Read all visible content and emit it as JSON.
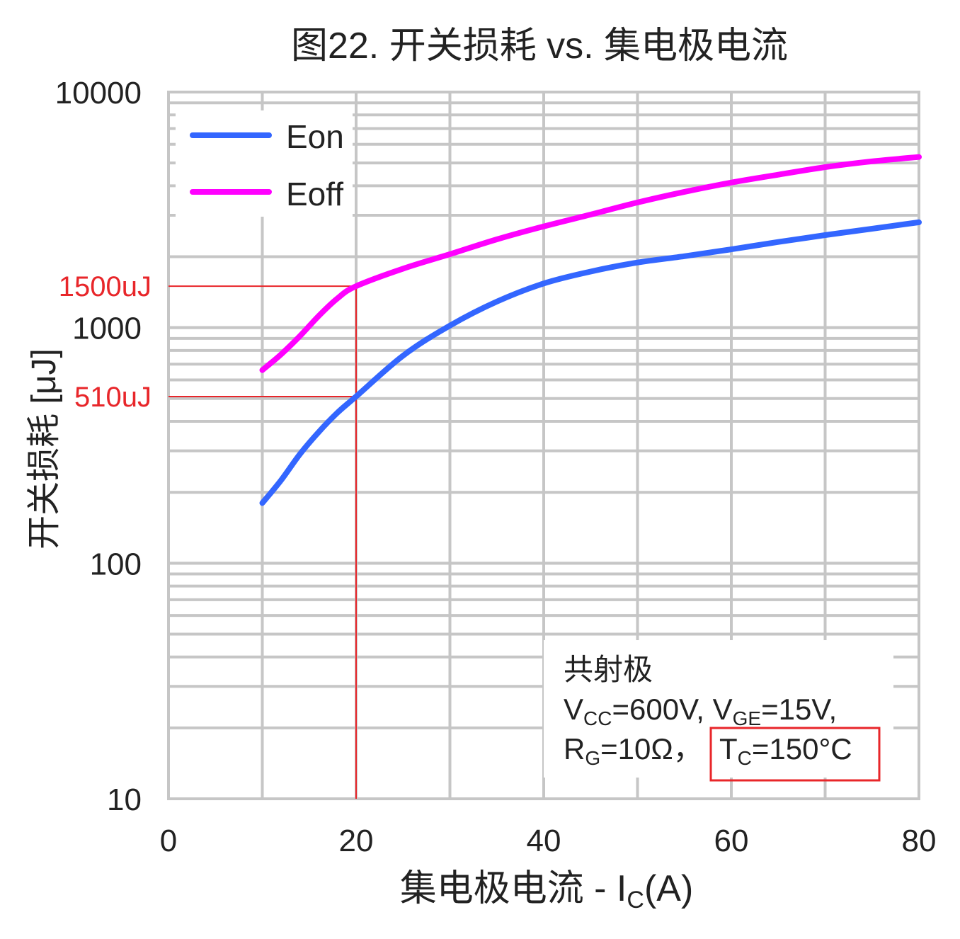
{
  "chart_data": {
    "type": "line",
    "title": "图22. 开关损耗 vs. 集电极电流",
    "xlabel": "集电极电流 - I",
    "xlabel_sub": "C",
    "xlabel_suffix": "(A)",
    "ylabel": "开关损耗 [μJ]",
    "xlim": [
      0,
      80
    ],
    "ylim": [
      10,
      10000
    ],
    "yscale": "log",
    "grid": true,
    "legend_position": "top-left",
    "x_ticks": [
      {
        "value": 0,
        "label": "0"
      },
      {
        "value": 20,
        "label": "20"
      },
      {
        "value": 40,
        "label": "40"
      },
      {
        "value": 60,
        "label": "60"
      },
      {
        "value": 80,
        "label": "80"
      }
    ],
    "y_ticks": [
      {
        "value": 10,
        "label": "10"
      },
      {
        "value": 100,
        "label": "100"
      },
      {
        "value": 1000,
        "label": "1000"
      },
      {
        "value": 10000,
        "label": "10000"
      }
    ],
    "series": [
      {
        "name": "Eon",
        "color": "#3366ff",
        "x": [
          10,
          12,
          14,
          16,
          18,
          20,
          25,
          30,
          35,
          40,
          45,
          50,
          55,
          60,
          65,
          70,
          75,
          80
        ],
        "y": [
          180,
          225,
          290,
          360,
          435,
          510,
          760,
          1020,
          1290,
          1540,
          1730,
          1890,
          2010,
          2150,
          2310,
          2470,
          2630,
          2800
        ]
      },
      {
        "name": "Eoff",
        "color": "#ff00ff",
        "x": [
          10,
          12,
          14,
          16,
          18,
          20,
          25,
          30,
          35,
          40,
          45,
          50,
          55,
          60,
          65,
          70,
          75,
          80
        ],
        "y": [
          660,
          770,
          920,
          1120,
          1330,
          1500,
          1780,
          2050,
          2370,
          2690,
          3020,
          3400,
          3770,
          4130,
          4460,
          4800,
          5080,
          5300
        ]
      }
    ],
    "annotations": {
      "marker_color": "#e8262a",
      "x_line_value": 20,
      "h_lines": [
        {
          "value": 1500,
          "label": "1500uJ"
        },
        {
          "value": 510,
          "label": "510uJ"
        }
      ],
      "conditions_line1": "共射极",
      "conditions_line2": {
        "v1": "V",
        "v1_sub": "CC",
        "v1_val": "=600V, ",
        "v2": "V",
        "v2_sub": "GE",
        "v2_val": "=15V,"
      },
      "conditions_line3": {
        "r": "R",
        "r_sub": "G",
        "r_val": "=10Ω，",
        "t": "T",
        "t_sub": "C",
        "t_val": "=150°C"
      }
    }
  }
}
